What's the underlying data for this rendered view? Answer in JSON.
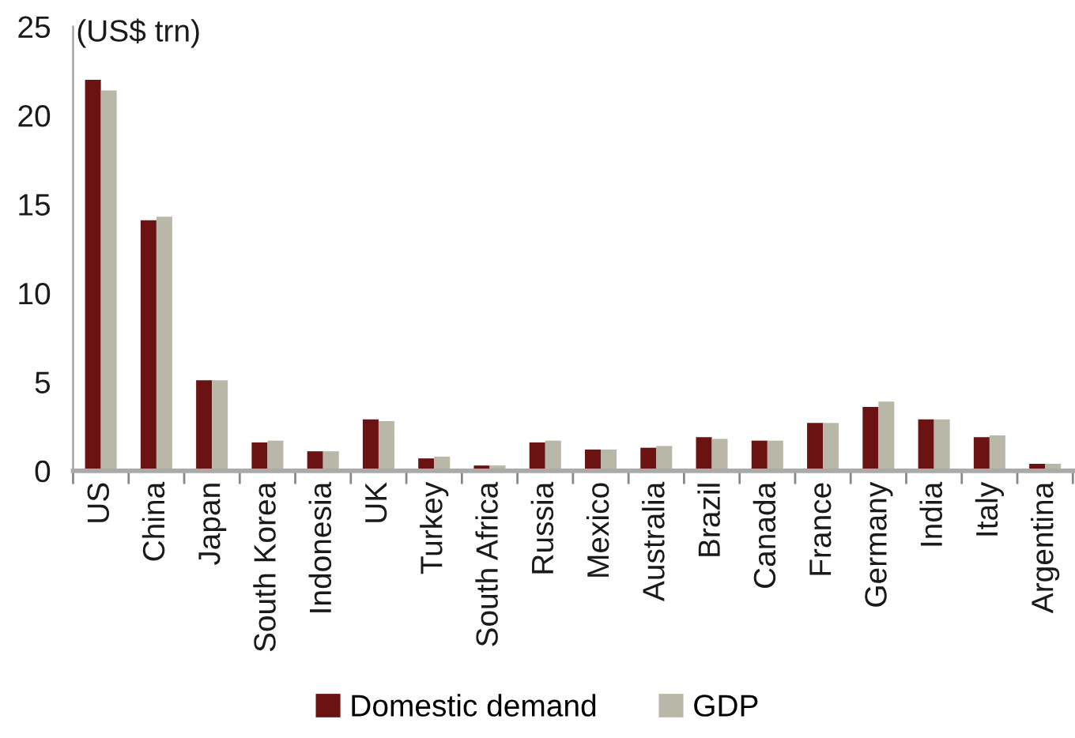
{
  "chart_data": {
    "type": "bar",
    "ylabel": "(US$ trn)",
    "categories": [
      "US",
      "China",
      "Japan",
      "South Korea",
      "Indonesia",
      "UK",
      "Turkey",
      "South Africa",
      "Russia",
      "Mexico",
      "Australia",
      "Brazil",
      "Canada",
      "France",
      "Germany",
      "India",
      "Italy",
      "Argentina"
    ],
    "series": [
      {
        "name": "Domestic demand",
        "color": "#6b1212",
        "values": [
          22.0,
          14.1,
          5.1,
          1.6,
          1.1,
          2.9,
          0.7,
          0.3,
          1.6,
          1.2,
          1.3,
          1.9,
          1.7,
          2.7,
          3.6,
          2.9,
          1.9,
          0.4
        ]
      },
      {
        "name": "GDP",
        "color": "#b9b7a7",
        "values": [
          21.4,
          14.3,
          5.1,
          1.7,
          1.1,
          2.8,
          0.8,
          0.3,
          1.7,
          1.2,
          1.4,
          1.8,
          1.7,
          2.7,
          3.9,
          2.9,
          2.0,
          0.4
        ]
      }
    ],
    "ylim": [
      0,
      25
    ],
    "yticks": [
      0,
      5,
      10,
      15,
      20,
      25
    ],
    "grid": false,
    "legend": "bottom"
  }
}
